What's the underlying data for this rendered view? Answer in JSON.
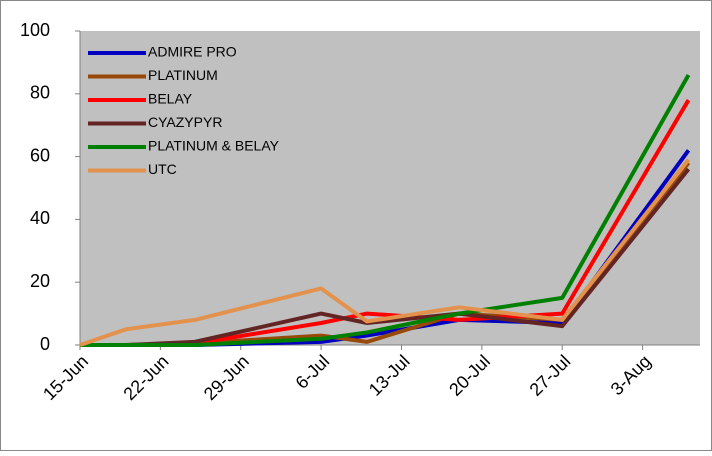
{
  "chart_data": {
    "type": "line",
    "x": [
      "15-Jun",
      "19-Jun",
      "25-Jun",
      "6-Jul",
      "10-Jul",
      "18-Jul",
      "27-Jul",
      "7-Aug"
    ],
    "series": [
      {
        "name": "ADMIRE PRO",
        "color": "#0000c0",
        "values": [
          0,
          0,
          0,
          1,
          3,
          8,
          7,
          62
        ]
      },
      {
        "name": "PLATINUM",
        "color": "#984807",
        "values": [
          0,
          0,
          0.5,
          3,
          1,
          10,
          8,
          58
        ]
      },
      {
        "name": "BELAY",
        "color": "#ff0000",
        "values": [
          0,
          0,
          0.5,
          7,
          10,
          8,
          10,
          78
        ]
      },
      {
        "name": "CYAZYPYR",
        "color": "#632523",
        "values": [
          0,
          0,
          1,
          10,
          7,
          10,
          6,
          56
        ]
      },
      {
        "name": "PLATINUM & BELAY",
        "color": "#008000",
        "values": [
          0,
          0,
          0,
          2,
          4,
          10,
          15,
          86
        ]
      },
      {
        "name": "UTC",
        "color": "#e3924e",
        "values": [
          0,
          5,
          8,
          18,
          7.5,
          12,
          8,
          59
        ]
      }
    ],
    "xlim": [
      "15-Jun",
      "8-Aug"
    ],
    "xticks": [
      "15-Jun",
      "22-Jun",
      "29-Jun",
      "6-Jul",
      "13-Jul",
      "20-Jul",
      "27-Jul",
      "3-Aug"
    ],
    "ylim": [
      0,
      100
    ],
    "yticks": [
      0,
      20,
      40,
      60,
      80,
      100
    ],
    "legend": "upper-left",
    "plot_background": "#c0c0c0"
  }
}
